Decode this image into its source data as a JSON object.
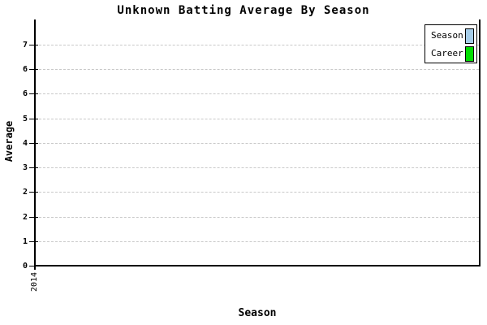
{
  "chart_data": {
    "type": "bar",
    "title": "Unknown Batting Average By Season",
    "xlabel": "Season",
    "ylabel": "Average",
    "categories": [
      "2014"
    ],
    "x_tick_labels": [
      "2014"
    ],
    "y_tick_labels_bottom_to_top": [
      "0",
      "1",
      "2",
      "2",
      "3",
      "4",
      "5",
      "6",
      "6",
      "7"
    ],
    "ylim": [
      0,
      7.2
    ],
    "grid": "horizontal-dashed",
    "legend_position": "top-right",
    "series": [
      {
        "name": "Season",
        "color": "#A6CDE9",
        "values": []
      },
      {
        "name": "Career",
        "color": "#00DD00",
        "values": []
      }
    ]
  },
  "colors": {
    "axis": "#000000",
    "grid": "#C9C9C9",
    "background": "#FFFFFF",
    "season_swatch": "#A6CDE9",
    "career_swatch": "#00DD00"
  }
}
